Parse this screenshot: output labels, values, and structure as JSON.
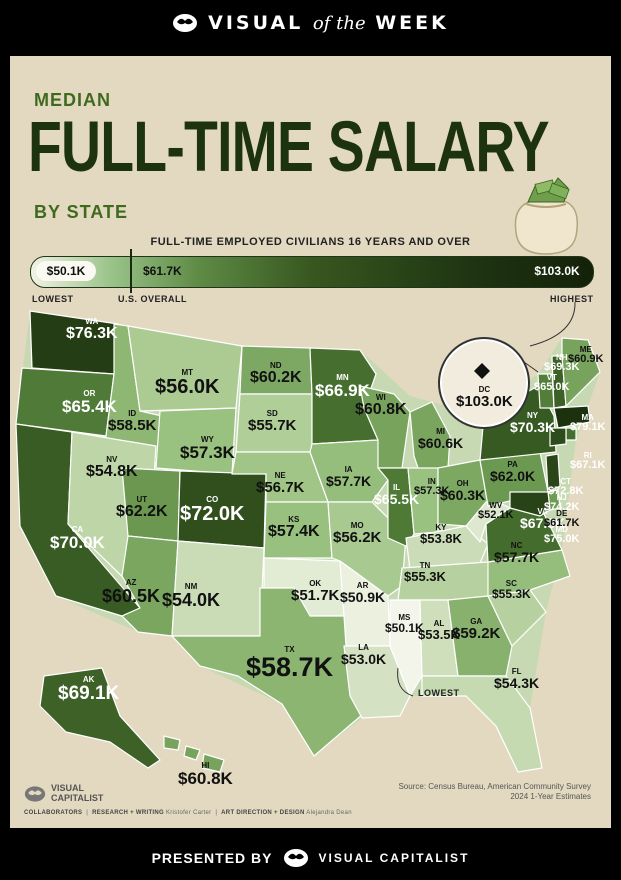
{
  "header": {
    "brand_a": "VISUAL",
    "brand_b": "of the",
    "brand_c": "WEEK"
  },
  "title": {
    "line1": "MEDIAN",
    "main": "FULL-TIME SALARY",
    "line3": "BY STATE"
  },
  "subtitle": "FULL-TIME EMPLOYED CIVILIANS 16 YEARS AND OVER",
  "legend": {
    "low_value": "$50.1K",
    "us_value": "$61.7K",
    "high_value": "$103.0K",
    "low_label": "LOWEST",
    "us_label": "U.S. OVERALL",
    "high_label": "HIGHEST",
    "scale_min": 50.1,
    "scale_us": 61.7,
    "scale_max": 103.0
  },
  "states": [
    {
      "abbr": "WA",
      "value": "$76.3K"
    },
    {
      "abbr": "OR",
      "value": "$65.4K"
    },
    {
      "abbr": "CA",
      "value": "$70.0K"
    },
    {
      "abbr": "ID",
      "value": "$58.5K"
    },
    {
      "abbr": "NV",
      "value": "$54.8K"
    },
    {
      "abbr": "MT",
      "value": "$56.0K"
    },
    {
      "abbr": "WY",
      "value": "$57.3K"
    },
    {
      "abbr": "UT",
      "value": "$62.2K"
    },
    {
      "abbr": "AZ",
      "value": "$60.5K"
    },
    {
      "abbr": "CO",
      "value": "$72.0K"
    },
    {
      "abbr": "NM",
      "value": "$54.0K"
    },
    {
      "abbr": "ND",
      "value": "$60.2K"
    },
    {
      "abbr": "SD",
      "value": "$55.7K"
    },
    {
      "abbr": "NE",
      "value": "$56.7K"
    },
    {
      "abbr": "KS",
      "value": "$57.4K"
    },
    {
      "abbr": "OK",
      "value": "$51.7K"
    },
    {
      "abbr": "TX",
      "value": "$58.7K"
    },
    {
      "abbr": "MN",
      "value": "$66.9K"
    },
    {
      "abbr": "IA",
      "value": "$57.7K"
    },
    {
      "abbr": "MO",
      "value": "$56.2K"
    },
    {
      "abbr": "AR",
      "value": "$50.9K"
    },
    {
      "abbr": "LA",
      "value": "$53.0K"
    },
    {
      "abbr": "WI",
      "value": "$60.8K"
    },
    {
      "abbr": "IL",
      "value": "$65.5K"
    },
    {
      "abbr": "MI",
      "value": "$60.6K"
    },
    {
      "abbr": "IN",
      "value": "$57.3K"
    },
    {
      "abbr": "OH",
      "value": "$60.3K"
    },
    {
      "abbr": "KY",
      "value": "$53.8K"
    },
    {
      "abbr": "TN",
      "value": "$55.3K"
    },
    {
      "abbr": "MS",
      "value": "$50.1K"
    },
    {
      "abbr": "AL",
      "value": "$53.5K"
    },
    {
      "abbr": "GA",
      "value": "$59.2K"
    },
    {
      "abbr": "FL",
      "value": "$54.3K"
    },
    {
      "abbr": "SC",
      "value": "$55.3K"
    },
    {
      "abbr": "NC",
      "value": "$57.7K"
    },
    {
      "abbr": "VA",
      "value": "$67.3K"
    },
    {
      "abbr": "WV",
      "value": "$52.1K"
    },
    {
      "abbr": "PA",
      "value": "$62.0K"
    },
    {
      "abbr": "NY",
      "value": "$70.3K"
    },
    {
      "abbr": "VT",
      "value": "$65.0K"
    },
    {
      "abbr": "NH",
      "value": "$69.3K"
    },
    {
      "abbr": "ME",
      "value": "$60.9K"
    },
    {
      "abbr": "MA",
      "value": "$79.1K"
    },
    {
      "abbr": "RI",
      "value": "$67.1K"
    },
    {
      "abbr": "CT",
      "value": "$72.8K"
    },
    {
      "abbr": "NJ",
      "value": "$74.2K"
    },
    {
      "abbr": "DE",
      "value": "$61.7K"
    },
    {
      "abbr": "MD",
      "value": "$75.0K"
    },
    {
      "abbr": "DC",
      "value": "$103.0K"
    },
    {
      "abbr": "AK",
      "value": "$69.1K"
    },
    {
      "abbr": "HI",
      "value": "$60.8K"
    }
  ],
  "annotations": {
    "lowest": "LOWEST"
  },
  "footer": {
    "logo_line1": "VISUAL",
    "logo_line2": "CAPITALIST",
    "collaborators_label": "COLLABORATORS",
    "research_label": "RESEARCH + WRITING",
    "research_name": "Kristofer Carter",
    "art_label": "ART DIRECTION + DESIGN",
    "art_name": "Alejandra Dean",
    "source": "Source: Census Bureau, American Community Survey 2024 1-Year Estimates"
  },
  "bottom": {
    "presented_by": "PRESENTED BY",
    "brand": "VISUAL CAPITALIST"
  },
  "colors": {
    "background": "#e3d9c0",
    "title_dark": "#1d3310",
    "title_accent": "#3f6a1e",
    "low": "#f4f5ea",
    "high": "#1a2e0d"
  }
}
